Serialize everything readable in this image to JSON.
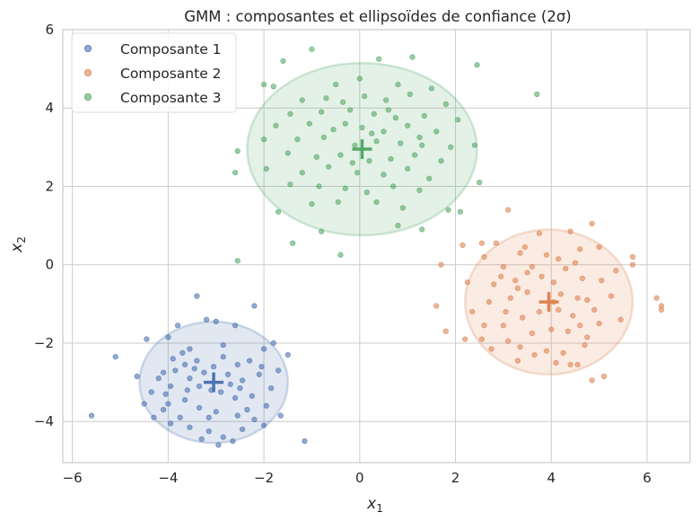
{
  "chart_data": {
    "type": "scatter",
    "title": "GMM : composantes et ellipsoïdes de confiance (2σ)",
    "xlabel": "x",
    "xlabel_sub": "1",
    "ylabel": "x",
    "ylabel_sub": "2",
    "xlim": [
      -6.2,
      6.9
    ],
    "ylim": [
      -5.05,
      6.0
    ],
    "xticks": [
      -6,
      -4,
      -2,
      0,
      2,
      4,
      6
    ],
    "xtick_labels": [
      "−6",
      "−4",
      "−2",
      "0",
      "2",
      "4",
      "6"
    ],
    "yticks": [
      -4,
      -2,
      0,
      2,
      4,
      6
    ],
    "ytick_labels": [
      "−4",
      "−2",
      "0",
      "2",
      "4",
      "6"
    ],
    "grid": true,
    "legend_position": "top-left",
    "series": [
      {
        "name": "Composante 1",
        "color": "#4c72b0",
        "center": [
          -3.05,
          -3.0
        ],
        "ellipse": {
          "cx": -3.05,
          "cy": -3.0,
          "rx": 1.55,
          "ry": 1.55
        },
        "points": [
          [
            -3.4,
            -0.8
          ],
          [
            -2.2,
            -1.05
          ],
          [
            -3.2,
            -1.4
          ],
          [
            -3.0,
            -1.45
          ],
          [
            -2.6,
            -1.55
          ],
          [
            -3.8,
            -1.55
          ],
          [
            -4.45,
            -1.9
          ],
          [
            -4.0,
            -1.85
          ],
          [
            -3.55,
            -2.15
          ],
          [
            -2.85,
            -2.05
          ],
          [
            -2.0,
            -2.15
          ],
          [
            -1.5,
            -2.3
          ],
          [
            -1.7,
            -2.7
          ],
          [
            -4.1,
            -2.75
          ],
          [
            -3.65,
            -2.55
          ],
          [
            -3.4,
            -2.45
          ],
          [
            -3.05,
            -2.6
          ],
          [
            -2.55,
            -2.55
          ],
          [
            -2.3,
            -2.45
          ],
          [
            -3.9,
            -2.4
          ],
          [
            -4.2,
            -2.9
          ],
          [
            -3.95,
            -3.1
          ],
          [
            -3.55,
            -2.9
          ],
          [
            -3.25,
            -2.75
          ],
          [
            -2.75,
            -2.8
          ],
          [
            -2.45,
            -2.95
          ],
          [
            -2.1,
            -2.8
          ],
          [
            -1.85,
            -3.15
          ],
          [
            -4.35,
            -3.25
          ],
          [
            -4.05,
            -3.3
          ],
          [
            -3.65,
            -3.45
          ],
          [
            -3.1,
            -3.2
          ],
          [
            -2.9,
            -3.25
          ],
          [
            -2.6,
            -3.4
          ],
          [
            -2.25,
            -3.35
          ],
          [
            -1.95,
            -3.6
          ],
          [
            -4.5,
            -3.55
          ],
          [
            -4.1,
            -3.7
          ],
          [
            -3.75,
            -3.9
          ],
          [
            -3.35,
            -3.65
          ],
          [
            -3.0,
            -3.75
          ],
          [
            -2.55,
            -3.85
          ],
          [
            -2.2,
            -3.95
          ],
          [
            -3.95,
            -4.05
          ],
          [
            -3.55,
            -4.15
          ],
          [
            -3.15,
            -4.25
          ],
          [
            -2.85,
            -4.4
          ],
          [
            -2.45,
            -4.2
          ],
          [
            -2.0,
            -4.1
          ],
          [
            -3.3,
            -4.45
          ],
          [
            -2.95,
            -4.6
          ],
          [
            -2.65,
            -4.5
          ],
          [
            -5.1,
            -2.35
          ],
          [
            -5.6,
            -3.85
          ],
          [
            -4.65,
            -2.85
          ],
          [
            -1.15,
            -4.5
          ],
          [
            -1.65,
            -3.85
          ],
          [
            -3.6,
            -3.2
          ],
          [
            -2.85,
            -2.35
          ],
          [
            -3.7,
            -2.25
          ],
          [
            -2.7,
            -3.05
          ],
          [
            -3.35,
            -3.1
          ],
          [
            -3.85,
            -2.7
          ],
          [
            -2.35,
            -3.7
          ],
          [
            -4.3,
            -3.9
          ],
          [
            -3.15,
            -3.9
          ],
          [
            -2.05,
            -2.6
          ],
          [
            -4.0,
            -3.55
          ],
          [
            -2.5,
            -3.15
          ],
          [
            -3.45,
            -2.65
          ],
          [
            -1.8,
            -2.0
          ]
        ]
      },
      {
        "name": "Composante 2",
        "color": "#dd8452",
        "center": [
          3.95,
          -0.95
        ],
        "ellipse": {
          "cx": 3.95,
          "cy": -0.95,
          "rx": 1.75,
          "ry": 1.85
        },
        "points": [
          [
            3.1,
            1.4
          ],
          [
            4.85,
            1.05
          ],
          [
            4.4,
            0.85
          ],
          [
            3.75,
            0.8
          ],
          [
            2.85,
            0.55
          ],
          [
            2.55,
            0.55
          ],
          [
            2.15,
            0.5
          ],
          [
            3.45,
            0.45
          ],
          [
            4.6,
            0.4
          ],
          [
            5.0,
            0.45
          ],
          [
            5.7,
            0.2
          ],
          [
            5.7,
            0.0
          ],
          [
            1.7,
            0.0
          ],
          [
            2.6,
            0.2
          ],
          [
            3.35,
            0.3
          ],
          [
            3.9,
            0.25
          ],
          [
            4.15,
            0.15
          ],
          [
            4.5,
            0.05
          ],
          [
            3.0,
            -0.05
          ],
          [
            3.6,
            -0.05
          ],
          [
            4.3,
            -0.1
          ],
          [
            5.35,
            -0.15
          ],
          [
            2.25,
            -0.45
          ],
          [
            2.8,
            -0.5
          ],
          [
            3.25,
            -0.4
          ],
          [
            3.8,
            -0.3
          ],
          [
            4.05,
            -0.45
          ],
          [
            4.65,
            -0.35
          ],
          [
            5.05,
            -0.4
          ],
          [
            1.6,
            -1.05
          ],
          [
            2.35,
            -1.2
          ],
          [
            2.7,
            -0.95
          ],
          [
            3.15,
            -0.85
          ],
          [
            3.5,
            -0.7
          ],
          [
            4.2,
            -0.75
          ],
          [
            4.55,
            -0.85
          ],
          [
            5.25,
            -0.8
          ],
          [
            6.2,
            -0.85
          ],
          [
            6.3,
            -1.05
          ],
          [
            6.3,
            -1.15
          ],
          [
            2.6,
            -1.55
          ],
          [
            3.0,
            -1.55
          ],
          [
            3.4,
            -1.35
          ],
          [
            3.75,
            -1.2
          ],
          [
            4.15,
            -1.15
          ],
          [
            4.45,
            -1.3
          ],
          [
            4.9,
            -1.15
          ],
          [
            5.45,
            -1.4
          ],
          [
            1.8,
            -1.7
          ],
          [
            2.55,
            -1.9
          ],
          [
            3.1,
            -1.95
          ],
          [
            3.6,
            -1.75
          ],
          [
            4.0,
            -1.65
          ],
          [
            4.35,
            -1.7
          ],
          [
            4.75,
            -1.85
          ],
          [
            2.2,
            -1.9
          ],
          [
            2.75,
            -2.15
          ],
          [
            3.35,
            -2.1
          ],
          [
            3.9,
            -2.2
          ],
          [
            4.25,
            -2.25
          ],
          [
            4.7,
            -2.05
          ],
          [
            3.3,
            -2.45
          ],
          [
            3.65,
            -2.3
          ],
          [
            4.1,
            -2.5
          ],
          [
            4.4,
            -2.55
          ],
          [
            4.55,
            -2.55
          ],
          [
            4.85,
            -2.95
          ],
          [
            5.1,
            -2.85
          ],
          [
            3.5,
            -0.2
          ],
          [
            4.75,
            -0.9
          ],
          [
            3.05,
            -1.2
          ],
          [
            4.05,
            -0.95
          ],
          [
            3.3,
            -0.6
          ],
          [
            4.6,
            -1.55
          ],
          [
            2.95,
            -0.3
          ],
          [
            5.0,
            -1.5
          ]
        ]
      },
      {
        "name": "Composante 3",
        "color": "#55a868",
        "center": [
          0.05,
          2.95
        ],
        "ellipse": {
          "cx": 0.05,
          "cy": 2.95,
          "rx": 2.4,
          "ry": 2.2
        },
        "points": [
          [
            -1.0,
            5.5
          ],
          [
            -1.6,
            5.2
          ],
          [
            0.4,
            5.25
          ],
          [
            1.1,
            5.3
          ],
          [
            2.45,
            5.1
          ],
          [
            -2.0,
            4.6
          ],
          [
            -1.8,
            4.55
          ],
          [
            -0.5,
            4.6
          ],
          [
            0.0,
            4.75
          ],
          [
            0.8,
            4.6
          ],
          [
            1.5,
            4.5
          ],
          [
            3.7,
            4.35
          ],
          [
            -1.2,
            4.2
          ],
          [
            -0.7,
            4.25
          ],
          [
            -0.35,
            4.15
          ],
          [
            0.1,
            4.3
          ],
          [
            0.55,
            4.2
          ],
          [
            1.05,
            4.35
          ],
          [
            1.8,
            4.1
          ],
          [
            -1.45,
            3.85
          ],
          [
            -0.8,
            3.9
          ],
          [
            -0.2,
            3.95
          ],
          [
            0.3,
            3.85
          ],
          [
            0.75,
            3.75
          ],
          [
            1.35,
            3.8
          ],
          [
            2.05,
            3.7
          ],
          [
            -1.75,
            3.55
          ],
          [
            -1.05,
            3.6
          ],
          [
            -0.55,
            3.45
          ],
          [
            0.05,
            3.5
          ],
          [
            0.5,
            3.4
          ],
          [
            1.0,
            3.55
          ],
          [
            1.6,
            3.4
          ],
          [
            -2.0,
            3.2
          ],
          [
            -1.3,
            3.2
          ],
          [
            -0.75,
            3.25
          ],
          [
            -0.1,
            3.05
          ],
          [
            0.35,
            3.15
          ],
          [
            0.85,
            3.1
          ],
          [
            1.3,
            3.05
          ],
          [
            1.9,
            3.0
          ],
          [
            2.4,
            3.05
          ],
          [
            -2.55,
            2.9
          ],
          [
            -1.5,
            2.85
          ],
          [
            -0.9,
            2.75
          ],
          [
            -0.4,
            2.8
          ],
          [
            0.2,
            2.65
          ],
          [
            0.65,
            2.7
          ],
          [
            1.15,
            2.8
          ],
          [
            1.7,
            2.65
          ],
          [
            -1.95,
            2.45
          ],
          [
            -1.2,
            2.35
          ],
          [
            -0.65,
            2.5
          ],
          [
            -0.05,
            2.35
          ],
          [
            0.5,
            2.3
          ],
          [
            1.0,
            2.45
          ],
          [
            1.45,
            2.2
          ],
          [
            -2.6,
            2.35
          ],
          [
            -1.45,
            2.05
          ],
          [
            -0.85,
            2.0
          ],
          [
            -0.3,
            1.95
          ],
          [
            0.15,
            1.85
          ],
          [
            0.7,
            2.0
          ],
          [
            1.25,
            1.9
          ],
          [
            2.5,
            2.1
          ],
          [
            -1.7,
            1.35
          ],
          [
            -1.0,
            1.55
          ],
          [
            -0.45,
            1.6
          ],
          [
            0.35,
            1.6
          ],
          [
            0.9,
            1.45
          ],
          [
            1.85,
            1.4
          ],
          [
            2.1,
            1.35
          ],
          [
            0.8,
            1.0
          ],
          [
            1.3,
            0.9
          ],
          [
            -0.8,
            0.85
          ],
          [
            -1.4,
            0.55
          ],
          [
            -0.4,
            0.25
          ],
          [
            -2.55,
            0.1
          ],
          [
            0.25,
            3.35
          ],
          [
            -0.3,
            3.6
          ],
          [
            0.6,
            3.95
          ],
          [
            -0.15,
            2.6
          ],
          [
            1.25,
            3.25
          ]
        ]
      }
    ]
  }
}
